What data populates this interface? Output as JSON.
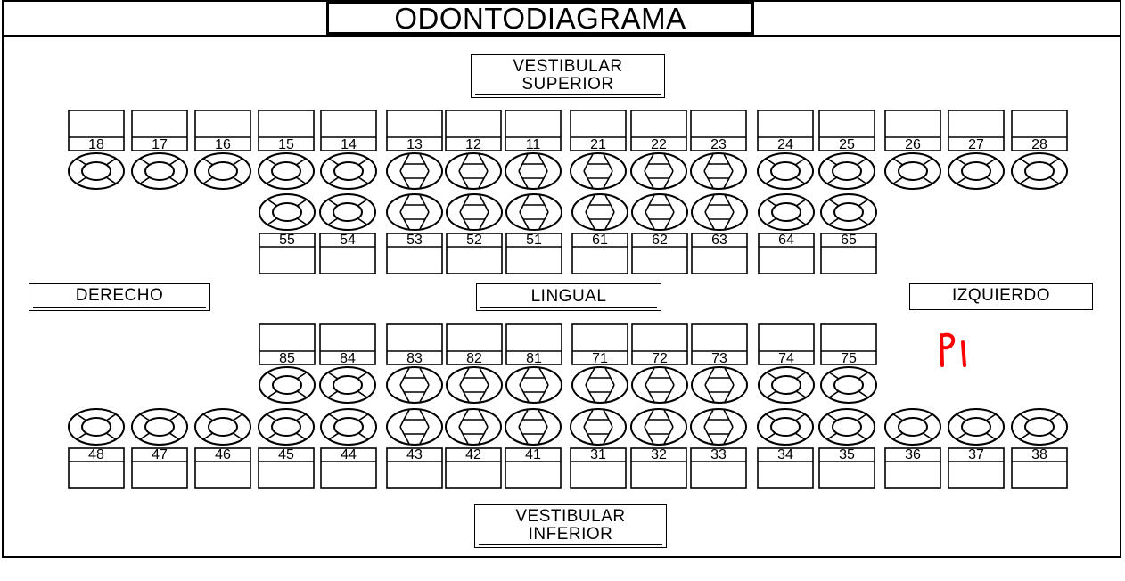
{
  "title": "ODONTODIAGRAMA",
  "labels": {
    "vestibular_superior": [
      "VESTIBULAR",
      "SUPERIOR"
    ],
    "vestibular_inferior": [
      "VESTIBULAR",
      "INFERIOR"
    ],
    "derecho": "DERECHO",
    "lingual": "LINGUAL",
    "izquierdo": "IZQUIERDO"
  },
  "annotation": "P1",
  "colors": {
    "line": "#000000",
    "annotation": "#ff0000"
  },
  "teeth": {
    "upper_permanent": [
      {
        "n": "18",
        "t": "m"
      },
      {
        "n": "17",
        "t": "m"
      },
      {
        "n": "16",
        "t": "m"
      },
      {
        "n": "15",
        "t": "m"
      },
      {
        "n": "14",
        "t": "m"
      },
      {
        "n": "13",
        "t": "a"
      },
      {
        "n": "12",
        "t": "a"
      },
      {
        "n": "11",
        "t": "a"
      },
      {
        "n": "21",
        "t": "a"
      },
      {
        "n": "22",
        "t": "a"
      },
      {
        "n": "23",
        "t": "a"
      },
      {
        "n": "24",
        "t": "m"
      },
      {
        "n": "25",
        "t": "m"
      },
      {
        "n": "26",
        "t": "m"
      },
      {
        "n": "27",
        "t": "m"
      },
      {
        "n": "28",
        "t": "m"
      }
    ],
    "upper_primary": [
      {
        "n": "55",
        "t": "m"
      },
      {
        "n": "54",
        "t": "m"
      },
      {
        "n": "53",
        "t": "a"
      },
      {
        "n": "52",
        "t": "a"
      },
      {
        "n": "51",
        "t": "a"
      },
      {
        "n": "61",
        "t": "a"
      },
      {
        "n": "62",
        "t": "a"
      },
      {
        "n": "63",
        "t": "a"
      },
      {
        "n": "64",
        "t": "m"
      },
      {
        "n": "65",
        "t": "m"
      }
    ],
    "lower_primary": [
      {
        "n": "85",
        "t": "m"
      },
      {
        "n": "84",
        "t": "m"
      },
      {
        "n": "83",
        "t": "a"
      },
      {
        "n": "82",
        "t": "a"
      },
      {
        "n": "81",
        "t": "a"
      },
      {
        "n": "71",
        "t": "a"
      },
      {
        "n": "72",
        "t": "a"
      },
      {
        "n": "73",
        "t": "a"
      },
      {
        "n": "74",
        "t": "m"
      },
      {
        "n": "75",
        "t": "m"
      }
    ],
    "lower_permanent": [
      {
        "n": "48",
        "t": "m"
      },
      {
        "n": "47",
        "t": "m"
      },
      {
        "n": "46",
        "t": "m"
      },
      {
        "n": "45",
        "t": "m"
      },
      {
        "n": "44",
        "t": "m"
      },
      {
        "n": "43",
        "t": "a"
      },
      {
        "n": "42",
        "t": "a"
      },
      {
        "n": "41",
        "t": "a"
      },
      {
        "n": "31",
        "t": "a"
      },
      {
        "n": "32",
        "t": "a"
      },
      {
        "n": "33",
        "t": "a"
      },
      {
        "n": "34",
        "t": "m"
      },
      {
        "n": "35",
        "t": "m"
      },
      {
        "n": "36",
        "t": "m"
      },
      {
        "n": "37",
        "t": "m"
      },
      {
        "n": "38",
        "t": "m"
      }
    ]
  }
}
